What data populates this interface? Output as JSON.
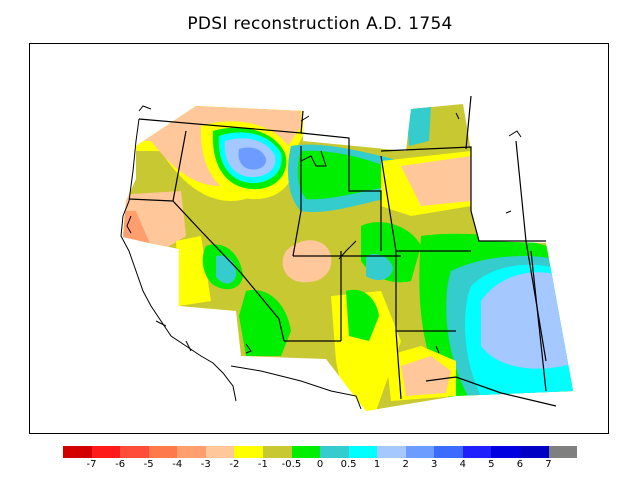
{
  "title": "PDSI reconstruction A.D. 1754",
  "legend": {
    "colors": [
      "#d40000",
      "#ff1a1a",
      "#ff4d3a",
      "#ff7a4a",
      "#ff9f6e",
      "#ffc79a",
      "#ffff00",
      "#c8c832",
      "#00ee00",
      "#34cccc",
      "#00ffff",
      "#a4c8ff",
      "#6c9cff",
      "#3c6cff",
      "#2020ff",
      "#0000e0",
      "#0000c4",
      "#7f7f7f"
    ],
    "labels": [
      "-7",
      "-6",
      "-5",
      "-4",
      "-3",
      "-2",
      "-1",
      "-0.5",
      "0",
      "0.5",
      "1",
      "2",
      "3",
      "4",
      "5",
      "6",
      "7"
    ]
  }
}
